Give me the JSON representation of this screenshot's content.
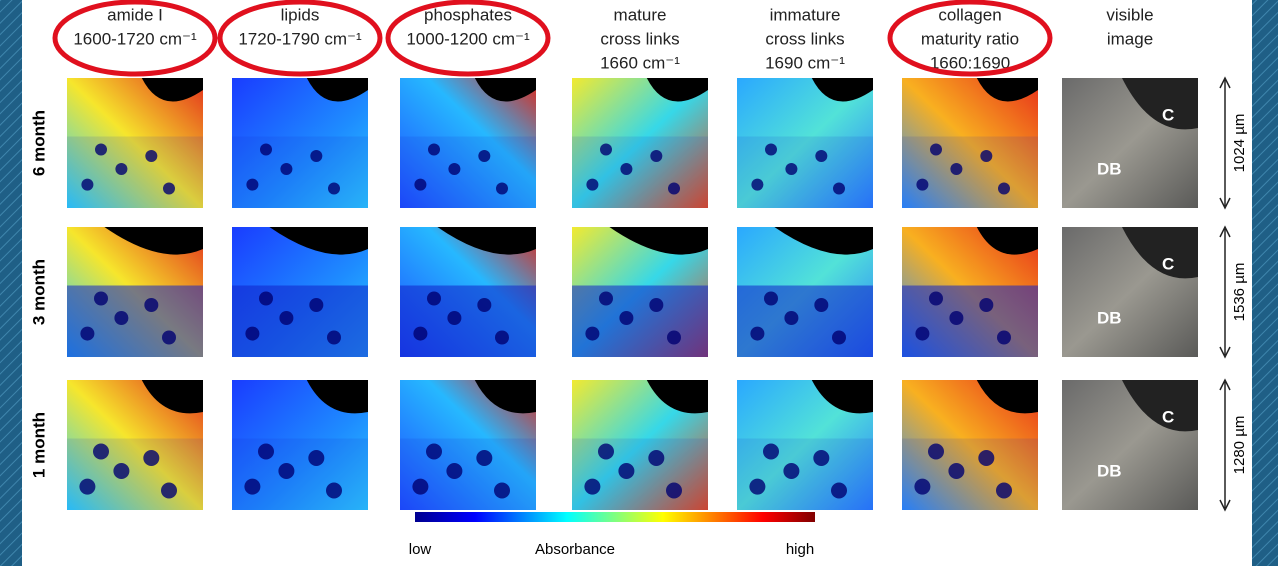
{
  "columns": [
    {
      "title_lines": [
        "amide I",
        "1600-1720 cm⁻¹"
      ],
      "circled": true
    },
    {
      "title_lines": [
        "lipids",
        "1720-1790 cm⁻¹"
      ],
      "circled": true
    },
    {
      "title_lines": [
        "phosphates",
        "1000-1200 cm⁻¹"
      ],
      "circled": true
    },
    {
      "title_lines": [
        "mature",
        "cross links",
        "1660 cm⁻¹"
      ],
      "circled": false
    },
    {
      "title_lines": [
        "immature",
        "cross links",
        "1690 cm⁻¹"
      ],
      "circled": false
    },
    {
      "title_lines": [
        "collagen",
        "maturity ratio",
        "1660:1690"
      ],
      "circled": true
    },
    {
      "title_lines": [
        "visible",
        "image"
      ],
      "circled": false
    }
  ],
  "rows": [
    {
      "label": "6 month",
      "scale": "1024 µm",
      "image_labels": [
        "C",
        "DB"
      ]
    },
    {
      "label": "3 month",
      "scale": "1536 µm",
      "image_labels": [
        "C",
        "DB"
      ]
    },
    {
      "label": "1 month",
      "scale": "1280 µm",
      "image_labels": [
        "C",
        "DB"
      ]
    }
  ],
  "colorbar": {
    "low": "low",
    "title": "Absorbance",
    "high": "high"
  }
}
